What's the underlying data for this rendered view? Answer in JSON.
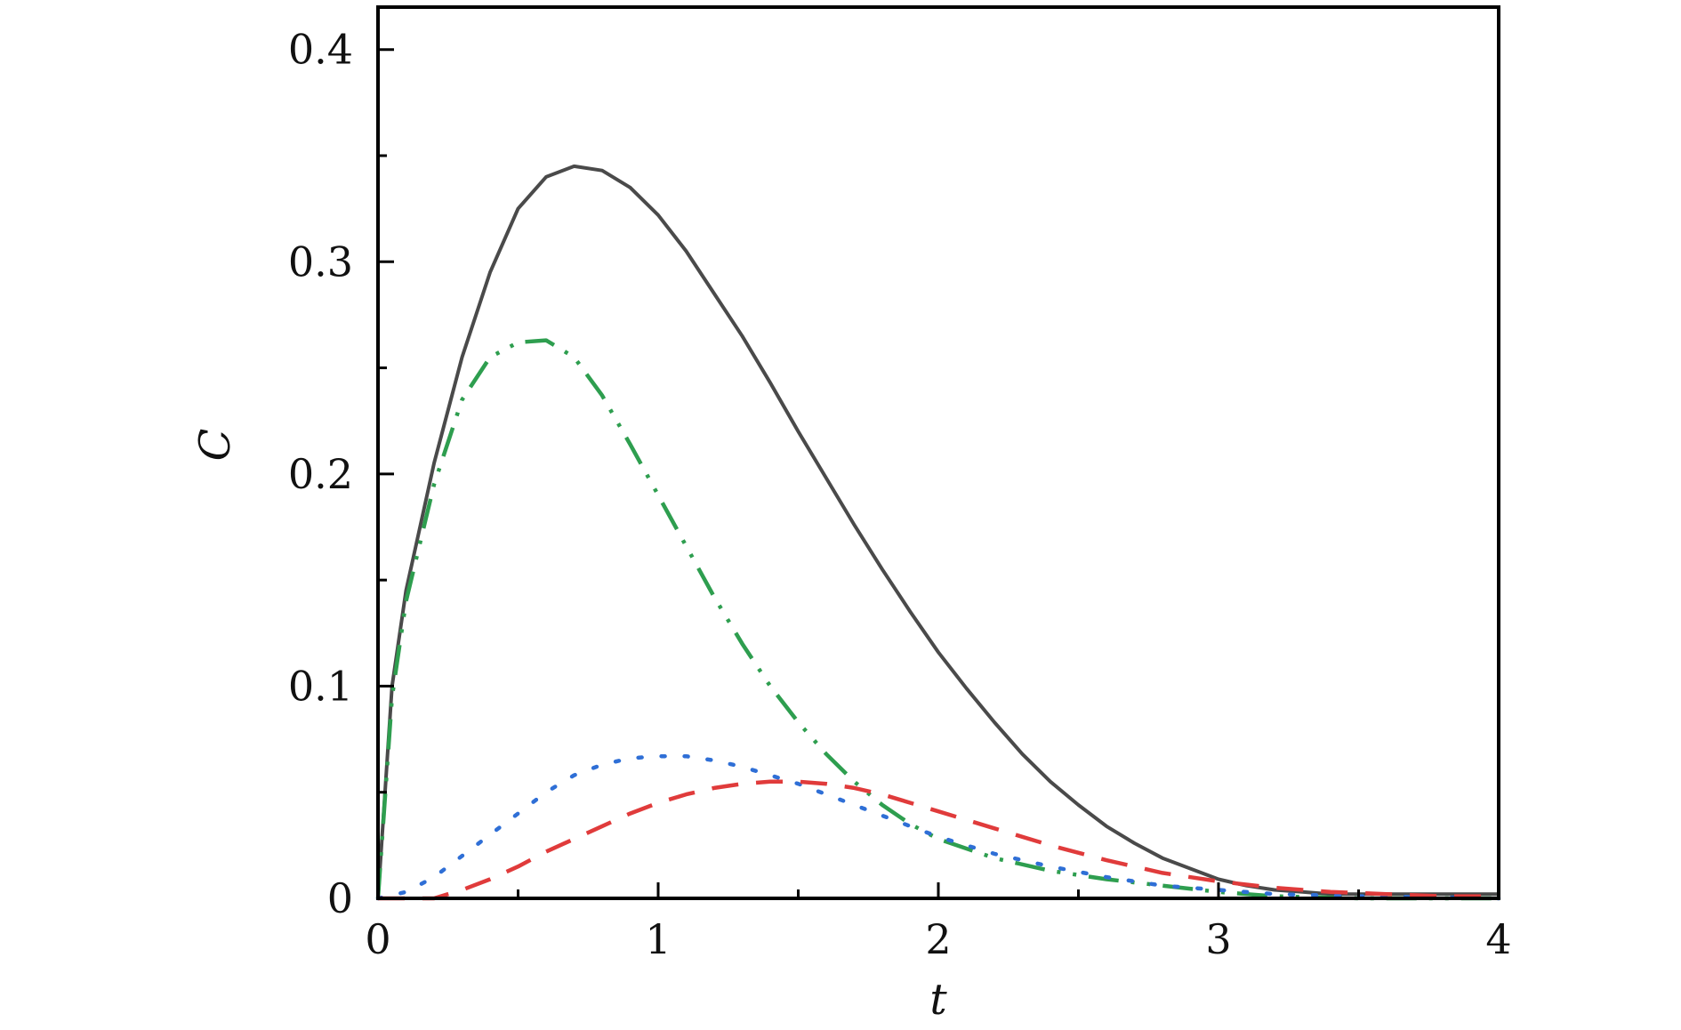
{
  "chart_data": {
    "type": "line",
    "title": "",
    "xlabel": "t",
    "ylabel": "C",
    "xlim": [
      0,
      4
    ],
    "ylim": [
      0,
      0.42
    ],
    "grid": false,
    "legend": "none",
    "x_ticks": [
      {
        "value": 0,
        "label": "0"
      },
      {
        "value": 1,
        "label": "1"
      },
      {
        "value": 2,
        "label": "2"
      },
      {
        "value": 3,
        "label": "3"
      },
      {
        "value": 4,
        "label": "4"
      }
    ],
    "x_minor_ticks": [
      0.5,
      1.5,
      2.5,
      3.5
    ],
    "y_ticks": [
      {
        "value": 0,
        "label": "0"
      },
      {
        "value": 0.1,
        "label": "0.1"
      },
      {
        "value": 0.2,
        "label": "0.2"
      },
      {
        "value": 0.3,
        "label": "0.3"
      },
      {
        "value": 0.4,
        "label": "0.4"
      }
    ],
    "y_minor_ticks": [
      0.05,
      0.15,
      0.25,
      0.35
    ],
    "series": [
      {
        "style": "solid",
        "color": "#4a4a4a",
        "points": [
          [
            0,
            0
          ],
          [
            0.05,
            0.1
          ],
          [
            0.1,
            0.145
          ],
          [
            0.2,
            0.205
          ],
          [
            0.3,
            0.255
          ],
          [
            0.4,
            0.295
          ],
          [
            0.5,
            0.325
          ],
          [
            0.6,
            0.34
          ],
          [
            0.7,
            0.345
          ],
          [
            0.8,
            0.343
          ],
          [
            0.9,
            0.335
          ],
          [
            1.0,
            0.322
          ],
          [
            1.1,
            0.305
          ],
          [
            1.2,
            0.285
          ],
          [
            1.3,
            0.265
          ],
          [
            1.4,
            0.243
          ],
          [
            1.5,
            0.22
          ],
          [
            1.6,
            0.198
          ],
          [
            1.7,
            0.176
          ],
          [
            1.8,
            0.155
          ],
          [
            1.9,
            0.135
          ],
          [
            2.0,
            0.116
          ],
          [
            2.1,
            0.099
          ],
          [
            2.2,
            0.083
          ],
          [
            2.3,
            0.068
          ],
          [
            2.4,
            0.055
          ],
          [
            2.5,
            0.044
          ],
          [
            2.6,
            0.034
          ],
          [
            2.7,
            0.026
          ],
          [
            2.8,
            0.019
          ],
          [
            2.9,
            0.014
          ],
          [
            3.0,
            0.009
          ],
          [
            3.1,
            0.006
          ],
          [
            3.2,
            0.004
          ],
          [
            3.3,
            0.003
          ],
          [
            3.4,
            0.002
          ],
          [
            3.5,
            0.002
          ],
          [
            3.7,
            0.002
          ],
          [
            4.0,
            0.002
          ]
        ]
      },
      {
        "style": "dash-dot-dot",
        "color": "#2e9e4f",
        "points": [
          [
            0,
            0
          ],
          [
            0.05,
            0.095
          ],
          [
            0.1,
            0.14
          ],
          [
            0.2,
            0.195
          ],
          [
            0.3,
            0.235
          ],
          [
            0.4,
            0.255
          ],
          [
            0.5,
            0.262
          ],
          [
            0.6,
            0.263
          ],
          [
            0.7,
            0.255
          ],
          [
            0.8,
            0.237
          ],
          [
            0.9,
            0.214
          ],
          [
            1.0,
            0.19
          ],
          [
            1.1,
            0.166
          ],
          [
            1.2,
            0.142
          ],
          [
            1.3,
            0.12
          ],
          [
            1.4,
            0.1
          ],
          [
            1.5,
            0.083
          ],
          [
            1.6,
            0.068
          ],
          [
            1.7,
            0.055
          ],
          [
            1.8,
            0.044
          ],
          [
            1.9,
            0.035
          ],
          [
            2.0,
            0.028
          ],
          [
            2.2,
            0.019
          ],
          [
            2.4,
            0.013
          ],
          [
            2.6,
            0.009
          ],
          [
            2.8,
            0.006
          ],
          [
            3.0,
            0.003
          ],
          [
            3.2,
            0.001
          ],
          [
            3.5,
            0.0
          ],
          [
            4.0,
            0.0
          ]
        ]
      },
      {
        "style": "dotted",
        "color": "#2f6fd6",
        "points": [
          [
            0,
            0
          ],
          [
            0.1,
            0.003
          ],
          [
            0.2,
            0.01
          ],
          [
            0.3,
            0.02
          ],
          [
            0.4,
            0.03
          ],
          [
            0.5,
            0.04
          ],
          [
            0.6,
            0.05
          ],
          [
            0.7,
            0.058
          ],
          [
            0.8,
            0.063
          ],
          [
            0.9,
            0.066
          ],
          [
            1.0,
            0.067
          ],
          [
            1.1,
            0.067
          ],
          [
            1.2,
            0.065
          ],
          [
            1.3,
            0.062
          ],
          [
            1.4,
            0.058
          ],
          [
            1.5,
            0.054
          ],
          [
            1.6,
            0.049
          ],
          [
            1.7,
            0.044
          ],
          [
            1.8,
            0.039
          ],
          [
            1.9,
            0.034
          ],
          [
            2.0,
            0.029
          ],
          [
            2.2,
            0.021
          ],
          [
            2.4,
            0.015
          ],
          [
            2.6,
            0.01
          ],
          [
            2.8,
            0.006
          ],
          [
            3.0,
            0.004
          ],
          [
            3.2,
            0.002
          ],
          [
            3.5,
            0.001
          ],
          [
            4.0,
            0.0
          ]
        ]
      },
      {
        "style": "dashed",
        "color": "#e03b3b",
        "points": [
          [
            0,
            0
          ],
          [
            0.2,
            0.0
          ],
          [
            0.3,
            0.004
          ],
          [
            0.4,
            0.009
          ],
          [
            0.5,
            0.015
          ],
          [
            0.6,
            0.022
          ],
          [
            0.7,
            0.028
          ],
          [
            0.8,
            0.034
          ],
          [
            0.9,
            0.04
          ],
          [
            1.0,
            0.045
          ],
          [
            1.1,
            0.049
          ],
          [
            1.2,
            0.052
          ],
          [
            1.3,
            0.054
          ],
          [
            1.4,
            0.055
          ],
          [
            1.5,
            0.055
          ],
          [
            1.6,
            0.054
          ],
          [
            1.7,
            0.052
          ],
          [
            1.8,
            0.049
          ],
          [
            1.9,
            0.045
          ],
          [
            2.0,
            0.041
          ],
          [
            2.2,
            0.033
          ],
          [
            2.4,
            0.025
          ],
          [
            2.6,
            0.018
          ],
          [
            2.8,
            0.012
          ],
          [
            3.0,
            0.008
          ],
          [
            3.2,
            0.005
          ],
          [
            3.4,
            0.003
          ],
          [
            3.6,
            0.002
          ],
          [
            3.8,
            0.001
          ],
          [
            4.0,
            0.001
          ]
        ]
      }
    ]
  }
}
